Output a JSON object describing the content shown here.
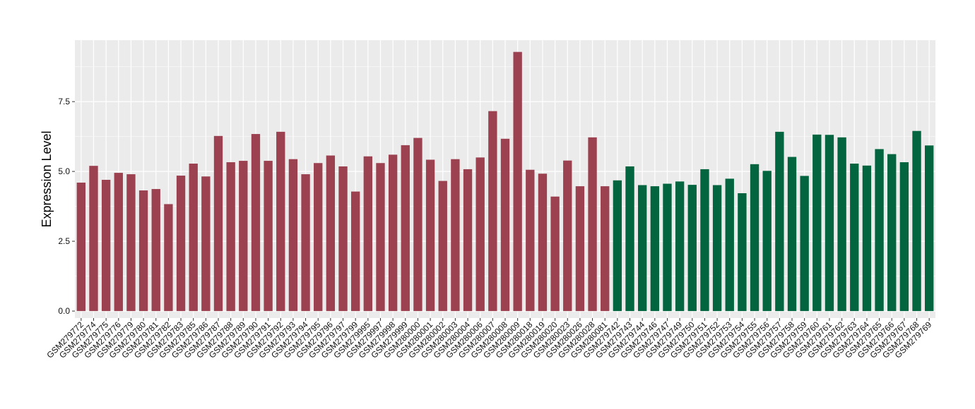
{
  "chart_data": {
    "type": "bar",
    "title": "",
    "xlabel": "",
    "ylabel": "Expression Level",
    "ylim": [
      -0.25,
      9.7
    ],
    "yticks": [
      0.0,
      2.5,
      5.0,
      7.5
    ],
    "ytick_labels": [
      "0.0",
      "2.5",
      "5.0",
      "7.5"
    ],
    "grid": true,
    "legend": "none",
    "colors": {
      "panel_bg": "#ebebeb",
      "grid": "#ffffff",
      "group1": "#9b4150",
      "group2": "#03653f"
    },
    "categories": [
      "GSM279772",
      "GSM279774",
      "GSM279775",
      "GSM279776",
      "GSM279779",
      "GSM279780",
      "GSM279781",
      "GSM279782",
      "GSM279783",
      "GSM279785",
      "GSM279786",
      "GSM279787",
      "GSM279788",
      "GSM279789",
      "GSM279790",
      "GSM279791",
      "GSM279792",
      "GSM279793",
      "GSM279794",
      "GSM279795",
      "GSM279796",
      "GSM279797",
      "GSM279799",
      "GSM279995",
      "GSM279997",
      "GSM279998",
      "GSM279999",
      "GSM280000",
      "GSM280001",
      "GSM280002",
      "GSM280003",
      "GSM280004",
      "GSM280006",
      "GSM280007",
      "GSM280008",
      "GSM280009",
      "GSM280018",
      "GSM280019",
      "GSM280020",
      "GSM280023",
      "GSM280026",
      "GSM280028",
      "GSM280081",
      "GSM279742",
      "GSM279743",
      "GSM279744",
      "GSM279746",
      "GSM279747",
      "GSM279749",
      "GSM279750",
      "GSM279751",
      "GSM279752",
      "GSM279753",
      "GSM279754",
      "GSM279755",
      "GSM279756",
      "GSM279757",
      "GSM279758",
      "GSM279759",
      "GSM279760",
      "GSM279761",
      "GSM279762",
      "GSM279763",
      "GSM279764",
      "GSM279765",
      "GSM279766",
      "GSM279767",
      "GSM279768",
      "GSM279769"
    ],
    "values": [
      4.6,
      5.2,
      4.7,
      4.95,
      4.9,
      4.32,
      4.37,
      3.83,
      4.85,
      5.28,
      4.82,
      6.27,
      5.33,
      5.38,
      6.34,
      5.38,
      6.42,
      5.44,
      4.9,
      5.3,
      5.57,
      5.18,
      4.28,
      5.54,
      5.3,
      5.6,
      5.94,
      6.2,
      5.42,
      4.66,
      5.44,
      5.08,
      5.5,
      7.16,
      6.17,
      9.28,
      5.06,
      4.92,
      4.1,
      5.39,
      4.47,
      6.22,
      4.47,
      4.68,
      5.18,
      4.51,
      4.47,
      4.56,
      4.64,
      4.52,
      5.08,
      4.51,
      4.74,
      4.22,
      5.26,
      5.02,
      6.42,
      5.52,
      4.84,
      6.32,
      6.31,
      6.22,
      5.28,
      5.21,
      5.8,
      5.62,
      5.33,
      6.45,
      5.93
    ],
    "groups": [
      1,
      1,
      1,
      1,
      1,
      1,
      1,
      1,
      1,
      1,
      1,
      1,
      1,
      1,
      1,
      1,
      1,
      1,
      1,
      1,
      1,
      1,
      1,
      1,
      1,
      1,
      1,
      1,
      1,
      1,
      1,
      1,
      1,
      1,
      1,
      1,
      1,
      1,
      1,
      1,
      1,
      1,
      1,
      2,
      2,
      2,
      2,
      2,
      2,
      2,
      2,
      2,
      2,
      2,
      2,
      2,
      2,
      2,
      2,
      2,
      2,
      2,
      2,
      2,
      2,
      2,
      2,
      2,
      2
    ]
  }
}
